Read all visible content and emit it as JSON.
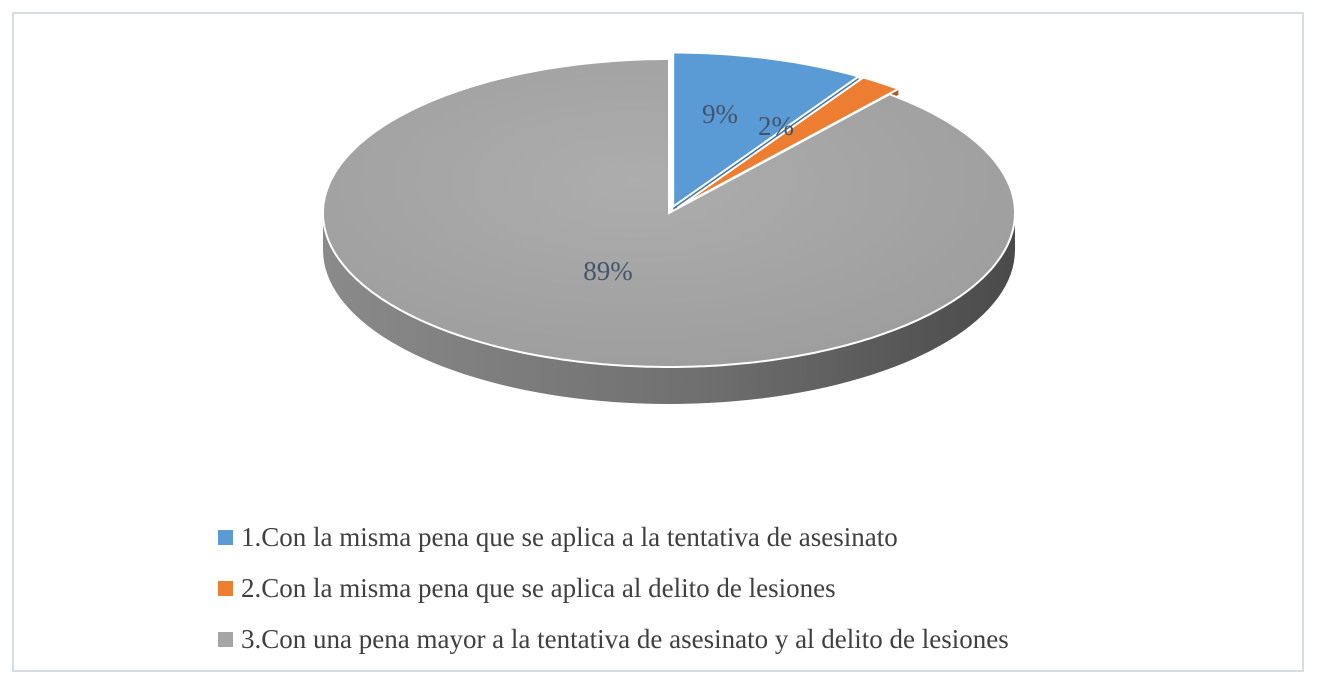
{
  "chart_data": {
    "type": "pie",
    "style": "3d",
    "categories": [
      "1.Con la misma pena que se aplica a la tentativa de asesinato",
      "2.Con la misma pena que se aplica al delito de lesiones",
      "3.Con una pena mayor a la tentativa de asesinato y al delito de lesiones"
    ],
    "values": [
      9,
      2,
      89
    ],
    "data_labels": [
      "9%",
      "2%",
      "89%"
    ],
    "colors": [
      "#5b9bd5",
      "#ed7d31",
      "#a5a5a5"
    ],
    "exploded": [
      true,
      true,
      false
    ],
    "legend_position": "bottom",
    "title": ""
  }
}
